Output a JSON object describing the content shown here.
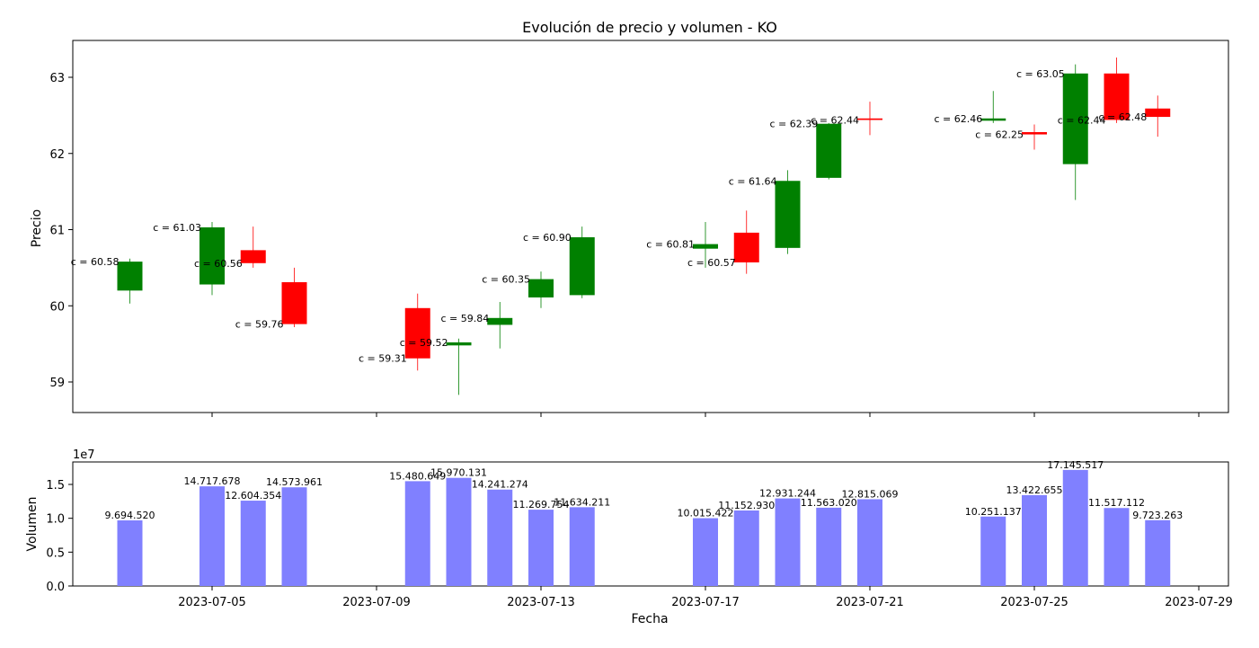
{
  "chart_data": [
    {
      "type": "candlestick",
      "title": "Evolución de precio y volumen - KO",
      "ylabel": "Precio",
      "xlabel": "",
      "ylim": [
        58.6,
        63.5
      ],
      "yticks": [
        "59",
        "60",
        "61",
        "62",
        "63"
      ],
      "grid": false,
      "colors": {
        "up": "#008000",
        "down": "#ff0000"
      },
      "annotation_prefix": "c = ",
      "candles": [
        {
          "date": "2023-07-03",
          "open": 60.2,
          "high": 60.62,
          "low": 60.03,
          "close": 60.58,
          "label": "60.58"
        },
        {
          "date": "2023-07-05",
          "open": 60.28,
          "high": 61.1,
          "low": 60.14,
          "close": 61.03,
          "label": "61.03"
        },
        {
          "date": "2023-07-06",
          "open": 60.73,
          "high": 61.04,
          "low": 60.5,
          "close": 60.56,
          "label": "60.56"
        },
        {
          "date": "2023-07-07",
          "open": 60.31,
          "high": 60.5,
          "low": 59.72,
          "close": 59.76,
          "label": "59.76"
        },
        {
          "date": "2023-07-10",
          "open": 59.97,
          "high": 60.16,
          "low": 59.15,
          "close": 59.31,
          "label": "59.31"
        },
        {
          "date": "2023-07-11",
          "open": 59.48,
          "high": 59.57,
          "low": 58.83,
          "close": 59.52,
          "label": "59.52"
        },
        {
          "date": "2023-07-12",
          "open": 59.75,
          "high": 60.05,
          "low": 59.44,
          "close": 59.84,
          "label": "59.84"
        },
        {
          "date": "2023-07-13",
          "open": 60.11,
          "high": 60.45,
          "low": 59.97,
          "close": 60.35,
          "label": "60.35"
        },
        {
          "date": "2023-07-14",
          "open": 60.14,
          "high": 61.04,
          "low": 60.1,
          "close": 60.9,
          "label": "60.90"
        },
        {
          "date": "2023-07-17",
          "open": 60.75,
          "high": 61.1,
          "low": 60.5,
          "close": 60.81,
          "label": "60.81"
        },
        {
          "date": "2023-07-18",
          "open": 60.96,
          "high": 61.25,
          "low": 60.42,
          "close": 60.57,
          "label": "60.57"
        },
        {
          "date": "2023-07-19",
          "open": 60.76,
          "high": 61.78,
          "low": 60.68,
          "close": 61.64,
          "label": "61.64"
        },
        {
          "date": "2023-07-20",
          "open": 61.68,
          "high": 62.4,
          "low": 61.66,
          "close": 62.39,
          "label": "62.39"
        },
        {
          "date": "2023-07-21",
          "open": 62.46,
          "high": 62.68,
          "low": 62.24,
          "close": 62.44,
          "label": "62.44"
        },
        {
          "date": "2023-07-24",
          "open": 62.43,
          "high": 62.82,
          "low": 62.4,
          "close": 62.46,
          "label": "62.46"
        },
        {
          "date": "2023-07-25",
          "open": 62.28,
          "high": 62.38,
          "low": 62.05,
          "close": 62.25,
          "label": "62.25"
        },
        {
          "date": "2023-07-26",
          "open": 61.86,
          "high": 63.17,
          "low": 61.39,
          "close": 63.05,
          "label": "63.05"
        },
        {
          "date": "2023-07-27",
          "open": 63.05,
          "high": 63.26,
          "low": 62.4,
          "close": 62.44,
          "label": "62.44"
        },
        {
          "date": "2023-07-28",
          "open": 62.59,
          "high": 62.76,
          "low": 62.22,
          "close": 62.48,
          "label": "62.48"
        }
      ]
    },
    {
      "type": "bar",
      "title": "",
      "ylabel": "Volumen",
      "xlabel": "Fecha",
      "ylim": [
        0,
        1.8
      ],
      "yticks": [
        "0.0",
        "0.5",
        "1.0",
        "1.5"
      ],
      "offset_text": "1e7",
      "bar_color": "#8080ff",
      "xticks": [
        "2023-07-05",
        "2023-07-09",
        "2023-07-13",
        "2023-07-17",
        "2023-07-21",
        "2023-07-25",
        "2023-07-29"
      ],
      "x": [
        "2023-07-03",
        "2023-07-05",
        "2023-07-06",
        "2023-07-07",
        "2023-07-10",
        "2023-07-11",
        "2023-07-12",
        "2023-07-13",
        "2023-07-14",
        "2023-07-17",
        "2023-07-18",
        "2023-07-19",
        "2023-07-20",
        "2023-07-21",
        "2023-07-24",
        "2023-07-25",
        "2023-07-26",
        "2023-07-27",
        "2023-07-28"
      ],
      "values": [
        9694520,
        14717678,
        12604354,
        14573961,
        15480649,
        15970131,
        14241274,
        11269754,
        11634211,
        10015422,
        11152930,
        12931244,
        11563020,
        12815069,
        10251137,
        13422655,
        17145517,
        11517112,
        9723263
      ],
      "labels": [
        "9.694.520",
        "14.717.678",
        "12.604.354",
        "14.573.961",
        "15.480.649",
        "15.970.131",
        "14.241.274",
        "11.269.754",
        "11.634.211",
        "10.015.422",
        "11.152.930",
        "12.931.244",
        "11.563.020",
        "12.815.069",
        "10.251.137",
        "13.422.655",
        "17.145.517",
        "11.517.112",
        "9.723.263"
      ]
    }
  ]
}
